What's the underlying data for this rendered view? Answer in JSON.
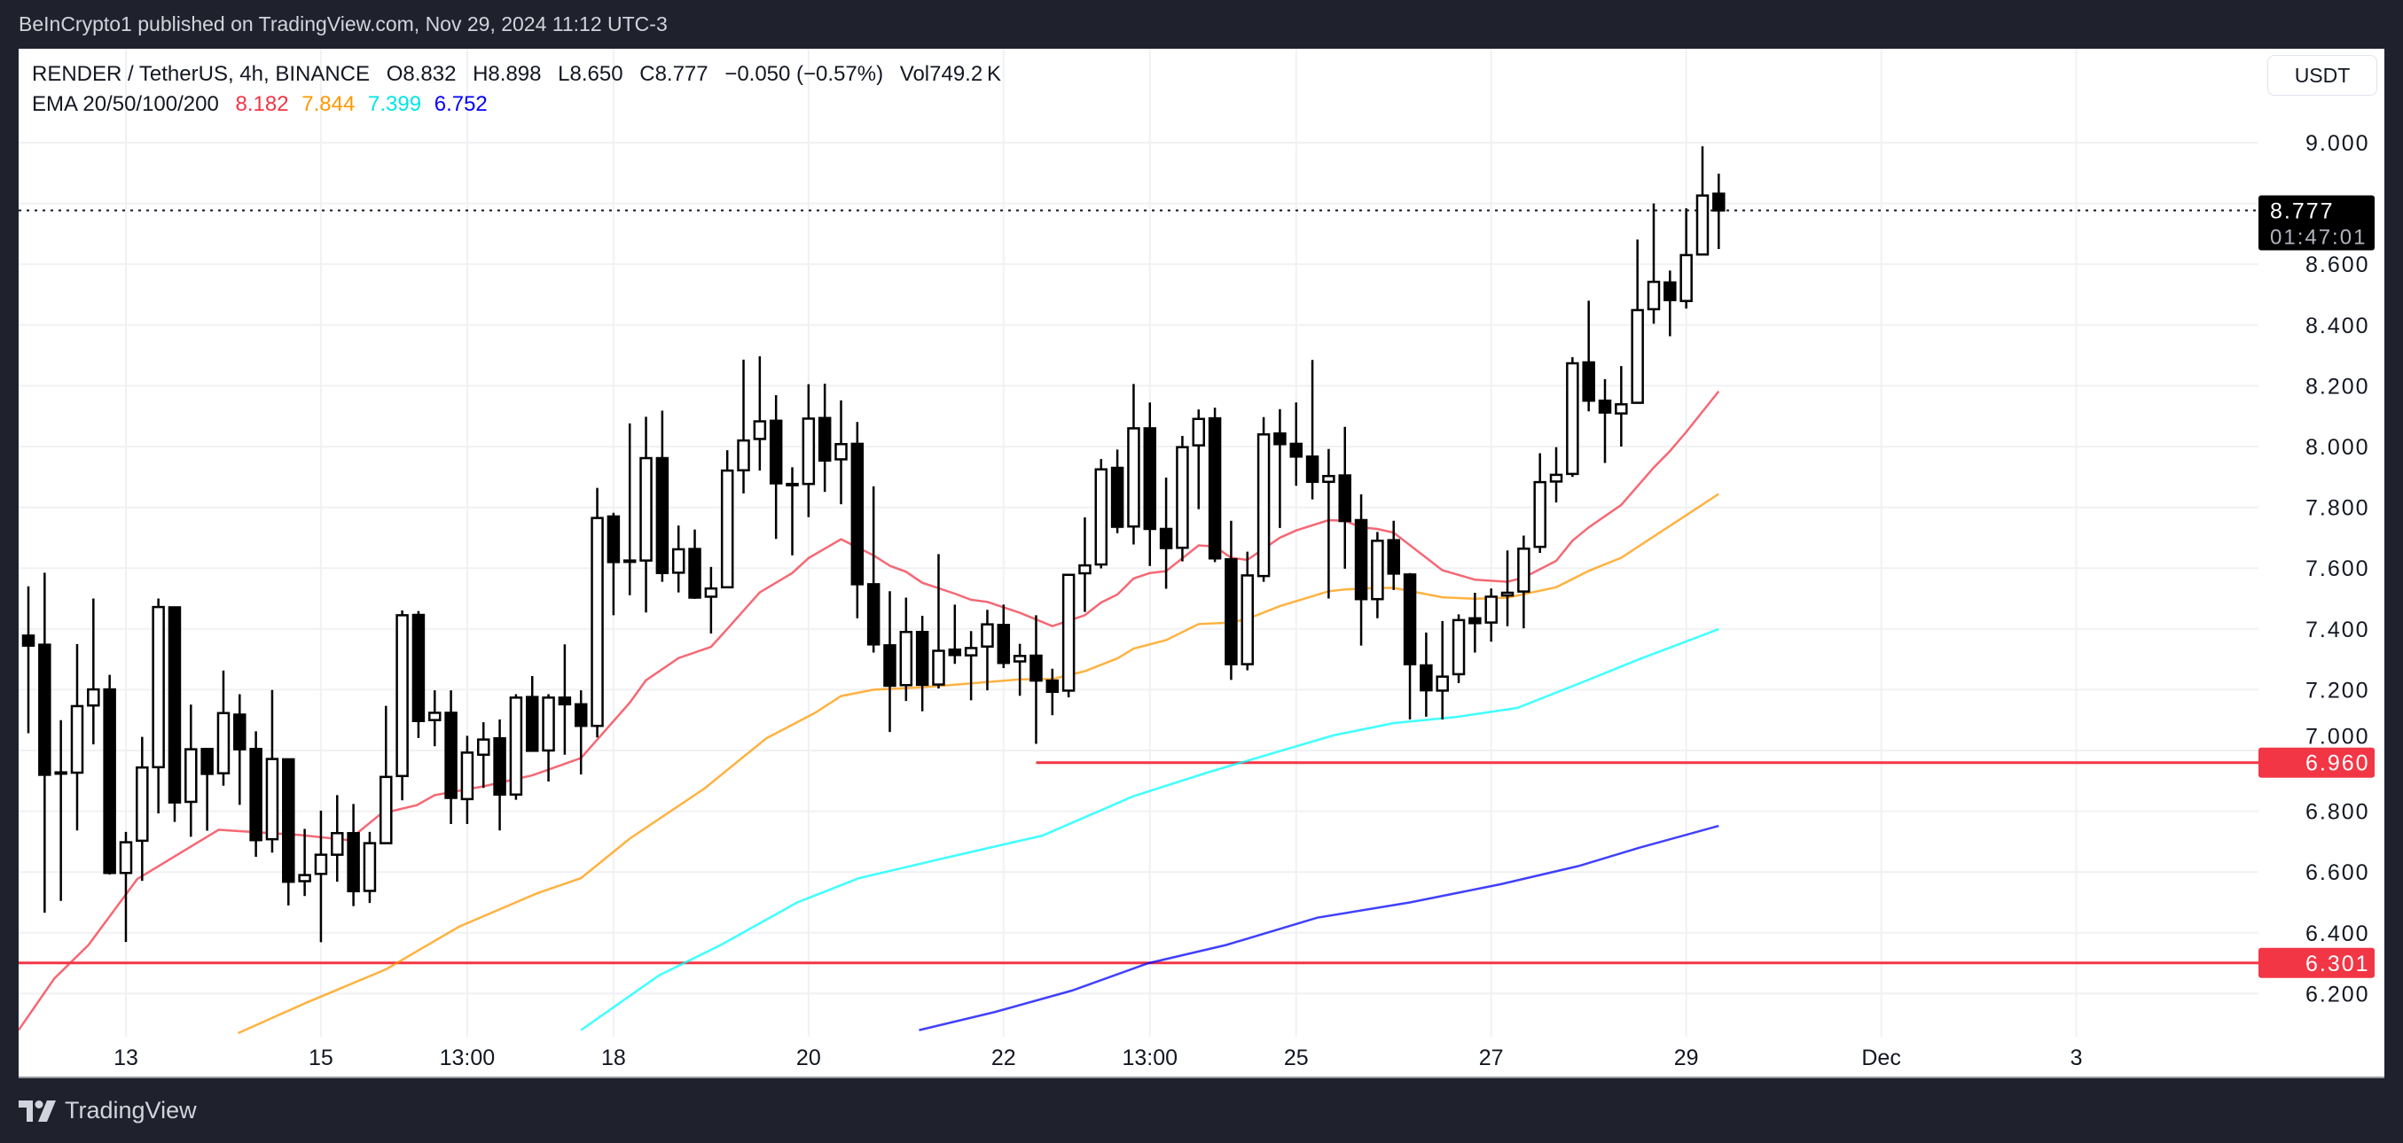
{
  "publisher_line": "BeInCrypto1 published on TradingView.com, Nov 29, 2024 11:12 UTC-3",
  "legend": {
    "symbol": "RENDER / TetherUS, 4h, BINANCE",
    "open": "O8.832",
    "high": "H8.898",
    "low": "L8.650",
    "close": "C8.777",
    "change": "−0.050 (−0.57%)",
    "volume": "Vol749.2 K",
    "ema_label": "EMA 20/50/100/200",
    "ema_values": [
      "8.182",
      "7.844",
      "7.399",
      "6.752"
    ]
  },
  "currency_button": "USDT",
  "footer": {
    "logo_text": "TradingView"
  },
  "colors": {
    "background": "#1f222d",
    "ema20": "#f23645",
    "ema50": "#ff9800",
    "ema100": "#00ffff",
    "ema200": "#0000ff",
    "level_line": "#f23645",
    "up_candle": "#ffffff",
    "down_candle": "#000000"
  },
  "chart_data": {
    "type": "candlestick",
    "symbol": "RENDER / TetherUS",
    "interval": "4h",
    "ylim": [
      6.08,
      9.32
    ],
    "grid": true,
    "y_ticks": [
      "9.000",
      "8.600",
      "8.400",
      "8.200",
      "8.000",
      "7.800",
      "7.600",
      "7.400",
      "7.200",
      "7.000",
      "6.800",
      "6.600",
      "6.400",
      "6.200"
    ],
    "x_ticks": [
      {
        "label": "13",
        "bar": 6
      },
      {
        "label": "15",
        "bar": 18
      },
      {
        "label": "13:00",
        "bar": 27
      },
      {
        "label": "18",
        "bar": 36
      },
      {
        "label": "20",
        "bar": 48
      },
      {
        "label": "22",
        "bar": 60
      },
      {
        "label": "13:00",
        "bar": 69
      },
      {
        "label": "25",
        "bar": 78
      },
      {
        "label": "27",
        "bar": 90
      },
      {
        "label": "29",
        "bar": 102
      },
      {
        "label": "Dec",
        "bar": 114
      },
      {
        "label": "3",
        "bar": 126
      }
    ],
    "ohlc_fields": [
      "open",
      "high",
      "low",
      "close"
    ],
    "candles": [
      [
        7.378,
        7.54,
        7.057,
        7.345
      ],
      [
        7.348,
        7.585,
        6.466,
        6.92
      ],
      [
        6.928,
        7.1,
        6.505,
        6.928
      ],
      [
        6.927,
        7.35,
        6.737,
        7.146
      ],
      [
        7.148,
        7.5,
        7.02,
        7.201
      ],
      [
        7.201,
        7.249,
        6.592,
        6.597
      ],
      [
        6.597,
        6.732,
        6.37,
        6.698
      ],
      [
        6.703,
        7.045,
        6.571,
        6.944
      ],
      [
        6.945,
        7.5,
        6.793,
        7.472
      ],
      [
        7.471,
        7.471,
        6.765,
        6.829
      ],
      [
        6.831,
        7.151,
        6.716,
        7.004
      ],
      [
        7.005,
        7.005,
        6.736,
        6.923
      ],
      [
        6.925,
        7.263,
        6.884,
        7.123
      ],
      [
        7.118,
        7.185,
        6.821,
        7.004
      ],
      [
        7.005,
        7.063,
        6.65,
        6.705
      ],
      [
        6.708,
        7.199,
        6.664,
        6.972
      ],
      [
        6.971,
        6.971,
        6.49,
        6.568
      ],
      [
        6.57,
        6.742,
        6.521,
        6.59
      ],
      [
        6.594,
        6.802,
        6.369,
        6.657
      ],
      [
        6.657,
        6.853,
        6.568,
        6.728
      ],
      [
        6.728,
        6.824,
        6.488,
        6.537
      ],
      [
        6.538,
        6.732,
        6.498,
        6.695
      ],
      [
        6.695,
        7.147,
        6.695,
        6.913
      ],
      [
        6.916,
        7.461,
        6.836,
        7.445
      ],
      [
        7.446,
        7.459,
        7.041,
        7.097
      ],
      [
        7.1,
        7.198,
        7.014,
        7.124
      ],
      [
        7.124,
        7.198,
        6.758,
        6.844
      ],
      [
        6.84,
        7.048,
        6.758,
        6.993
      ],
      [
        6.986,
        7.093,
        6.877,
        7.036
      ],
      [
        7.04,
        7.102,
        6.737,
        6.855
      ],
      [
        6.855,
        7.185,
        6.838,
        7.174
      ],
      [
        7.176,
        7.245,
        6.999,
        6.999
      ],
      [
        7.0,
        7.185,
        6.898,
        7.174
      ],
      [
        7.174,
        7.349,
        6.986,
        7.152
      ],
      [
        7.152,
        7.198,
        6.921,
        7.081
      ],
      [
        7.081,
        7.864,
        7.043,
        7.765
      ],
      [
        7.77,
        7.782,
        7.445,
        7.62
      ],
      [
        7.625,
        8.076,
        7.511,
        7.625
      ],
      [
        7.625,
        8.098,
        7.454,
        7.962
      ],
      [
        7.962,
        8.118,
        7.555,
        7.584
      ],
      [
        7.585,
        7.74,
        7.52,
        7.662
      ],
      [
        7.663,
        7.727,
        7.499,
        7.503
      ],
      [
        7.506,
        7.604,
        7.385,
        7.533
      ],
      [
        7.537,
        7.988,
        7.534,
        7.921
      ],
      [
        7.922,
        8.286,
        7.846,
        8.02
      ],
      [
        8.025,
        8.297,
        7.921,
        8.083
      ],
      [
        8.085,
        8.169,
        7.696,
        7.879
      ],
      [
        7.877,
        7.932,
        7.642,
        7.877
      ],
      [
        7.877,
        8.205,
        7.768,
        8.092
      ],
      [
        8.094,
        8.207,
        7.851,
        7.954
      ],
      [
        7.958,
        8.152,
        7.81,
        8.008
      ],
      [
        8.009,
        8.081,
        7.435,
        7.547
      ],
      [
        7.547,
        7.869,
        7.322,
        7.349
      ],
      [
        7.346,
        7.524,
        7.061,
        7.213
      ],
      [
        7.215,
        7.503,
        7.163,
        7.39
      ],
      [
        7.39,
        7.443,
        7.129,
        7.216
      ],
      [
        7.217,
        7.646,
        7.204,
        7.328
      ],
      [
        7.332,
        7.48,
        7.285,
        7.314
      ],
      [
        7.313,
        7.393,
        7.165,
        7.337
      ],
      [
        7.342,
        7.463,
        7.198,
        7.415
      ],
      [
        7.413,
        7.48,
        7.271,
        7.288
      ],
      [
        7.293,
        7.351,
        7.18,
        7.311
      ],
      [
        7.312,
        7.445,
        7.022,
        7.23
      ],
      [
        7.23,
        7.269,
        7.116,
        7.193
      ],
      [
        7.197,
        7.578,
        7.175,
        7.578
      ],
      [
        7.583,
        7.767,
        7.456,
        7.609
      ],
      [
        7.612,
        7.959,
        7.599,
        7.925
      ],
      [
        7.93,
        7.99,
        7.715,
        7.736
      ],
      [
        7.737,
        8.206,
        7.678,
        8.06
      ],
      [
        8.06,
        8.145,
        7.607,
        7.729
      ],
      [
        7.729,
        7.898,
        7.532,
        7.666
      ],
      [
        7.667,
        8.035,
        7.622,
        7.998
      ],
      [
        8.004,
        8.122,
        7.794,
        8.091
      ],
      [
        8.093,
        8.128,
        7.62,
        7.632
      ],
      [
        7.629,
        7.756,
        7.232,
        7.284
      ],
      [
        7.284,
        7.654,
        7.264,
        7.576
      ],
      [
        7.574,
        8.097,
        7.555,
        8.04
      ],
      [
        8.043,
        8.123,
        7.732,
        8.008
      ],
      [
        8.009,
        8.145,
        7.871,
        7.967
      ],
      [
        7.967,
        8.285,
        7.826,
        7.884
      ],
      [
        7.884,
        7.992,
        7.5,
        7.903
      ],
      [
        7.905,
        8.065,
        7.598,
        7.755
      ],
      [
        7.758,
        7.843,
        7.345,
        7.498
      ],
      [
        7.498,
        7.719,
        7.435,
        7.69
      ],
      [
        7.692,
        7.756,
        7.528,
        7.582
      ],
      [
        7.579,
        7.584,
        7.102,
        7.284
      ],
      [
        7.28,
        7.388,
        7.111,
        7.198
      ],
      [
        7.197,
        7.426,
        7.102,
        7.243
      ],
      [
        7.251,
        7.448,
        7.222,
        7.429
      ],
      [
        7.435,
        7.519,
        7.322,
        7.419
      ],
      [
        7.421,
        7.533,
        7.358,
        7.506
      ],
      [
        7.51,
        7.658,
        7.409,
        7.519
      ],
      [
        7.523,
        7.707,
        7.402,
        7.664
      ],
      [
        7.67,
        7.978,
        7.65,
        7.883
      ],
      [
        7.885,
        7.998,
        7.816,
        7.907
      ],
      [
        7.91,
        8.294,
        7.9,
        8.274
      ],
      [
        8.277,
        8.48,
        8.116,
        8.151
      ],
      [
        8.151,
        8.222,
        7.946,
        8.112
      ],
      [
        8.109,
        8.265,
        8.0,
        8.139
      ],
      [
        8.144,
        8.681,
        8.144,
        8.449
      ],
      [
        8.452,
        8.8,
        8.404,
        8.542
      ],
      [
        8.54,
        8.579,
        8.363,
        8.482
      ],
      [
        8.479,
        8.784,
        8.454,
        8.63
      ],
      [
        8.632,
        8.988,
        8.632,
        8.826
      ],
      [
        8.832,
        8.898,
        8.65,
        8.777
      ]
    ],
    "series": [
      {
        "name": "EMA 20",
        "color": "#f23645",
        "points": [
          [
            -0.6,
            6.08
          ],
          [
            1.6,
            6.25
          ],
          [
            3.7,
            6.36
          ],
          [
            6.7,
            6.577
          ],
          [
            11.7,
            6.739
          ],
          [
            16.7,
            6.722
          ],
          [
            19.7,
            6.705
          ],
          [
            21.7,
            6.792
          ],
          [
            23.9,
            6.82
          ],
          [
            25,
            6.853
          ],
          [
            28,
            6.882
          ],
          [
            31,
            6.918
          ],
          [
            34,
            6.975
          ],
          [
            37,
            7.157
          ],
          [
            38,
            7.231
          ],
          [
            40,
            7.304
          ],
          [
            42,
            7.341
          ],
          [
            43,
            7.4
          ],
          [
            45,
            7.52
          ],
          [
            47,
            7.584
          ],
          [
            48,
            7.633
          ],
          [
            49,
            7.664
          ],
          [
            50,
            7.695
          ],
          [
            52,
            7.642
          ],
          [
            53,
            7.608
          ],
          [
            54,
            7.588
          ],
          [
            55,
            7.552
          ],
          [
            57,
            7.516
          ],
          [
            58,
            7.496
          ],
          [
            59,
            7.489
          ],
          [
            61,
            7.453
          ],
          [
            63,
            7.409
          ],
          [
            65,
            7.445
          ],
          [
            66,
            7.487
          ],
          [
            67,
            7.513
          ],
          [
            68,
            7.566
          ],
          [
            69,
            7.584
          ],
          [
            70,
            7.59
          ],
          [
            72,
            7.675
          ],
          [
            73,
            7.671
          ],
          [
            74,
            7.634
          ],
          [
            75,
            7.627
          ],
          [
            77,
            7.7
          ],
          [
            78,
            7.724
          ],
          [
            80,
            7.758
          ],
          [
            81,
            7.756
          ],
          [
            82,
            7.734
          ],
          [
            83,
            7.729
          ],
          [
            84,
            7.717
          ],
          [
            87,
            7.593
          ],
          [
            89,
            7.562
          ],
          [
            91,
            7.555
          ],
          [
            92,
            7.569
          ],
          [
            94,
            7.624
          ],
          [
            95,
            7.69
          ],
          [
            96,
            7.734
          ],
          [
            98,
            7.808
          ],
          [
            100,
            7.931
          ],
          [
            101,
            7.985
          ],
          [
            102,
            8.048
          ],
          [
            104,
            8.182
          ]
        ]
      },
      {
        "name": "EMA 50",
        "color": "#ff9800",
        "points": [
          [
            12.9,
            6.07
          ],
          [
            17.1,
            6.17
          ],
          [
            22,
            6.28
          ],
          [
            26.5,
            6.42
          ],
          [
            31.3,
            6.53
          ],
          [
            34,
            6.58
          ],
          [
            37,
            6.71
          ],
          [
            41.6,
            6.875
          ],
          [
            45.4,
            7.04
          ],
          [
            48.4,
            7.124
          ],
          [
            50,
            7.179
          ],
          [
            52,
            7.2
          ],
          [
            55,
            7.208
          ],
          [
            58,
            7.221
          ],
          [
            61,
            7.234
          ],
          [
            63,
            7.235
          ],
          [
            65,
            7.261
          ],
          [
            67,
            7.303
          ],
          [
            68,
            7.335
          ],
          [
            70,
            7.363
          ],
          [
            72,
            7.416
          ],
          [
            74,
            7.421
          ],
          [
            75,
            7.433
          ],
          [
            77,
            7.475
          ],
          [
            80,
            7.524
          ],
          [
            81,
            7.53
          ],
          [
            83,
            7.535
          ],
          [
            84,
            7.535
          ],
          [
            87,
            7.504
          ],
          [
            89,
            7.499
          ],
          [
            91,
            7.503
          ],
          [
            94,
            7.537
          ],
          [
            96,
            7.591
          ],
          [
            98,
            7.634
          ],
          [
            104,
            7.844
          ]
        ]
      },
      {
        "name": "EMA 100",
        "color": "#00ffff",
        "points": [
          [
            34,
            6.08
          ],
          [
            38.8,
            6.26
          ],
          [
            42.6,
            6.36
          ],
          [
            47.3,
            6.5
          ],
          [
            51.1,
            6.58
          ],
          [
            56.7,
            6.65
          ],
          [
            62.4,
            6.72
          ],
          [
            68,
            6.85
          ],
          [
            72.7,
            6.93
          ],
          [
            76.5,
            6.99
          ],
          [
            80.3,
            7.05
          ],
          [
            84,
            7.09
          ],
          [
            87.8,
            7.11
          ],
          [
            91.6,
            7.14
          ],
          [
            95.4,
            7.22
          ],
          [
            99.1,
            7.3
          ],
          [
            104,
            7.399
          ]
        ]
      },
      {
        "name": "EMA 200",
        "color": "#0000ff",
        "points": [
          [
            54.8,
            6.08
          ],
          [
            59.5,
            6.14
          ],
          [
            64.2,
            6.21
          ],
          [
            68.9,
            6.3
          ],
          [
            73.7,
            6.36
          ],
          [
            79.3,
            6.45
          ],
          [
            85,
            6.5
          ],
          [
            90.6,
            6.56
          ],
          [
            95.4,
            6.62
          ],
          [
            99.1,
            6.68
          ],
          [
            104,
            6.752
          ]
        ]
      }
    ],
    "horizontal_levels": [
      {
        "price": 6.96,
        "label": "6.960",
        "from_bar": 62
      },
      {
        "price": 6.301,
        "label": "6.301",
        "from_bar": null
      }
    ],
    "last_price": {
      "label": "8.777",
      "countdown": "01:47:01",
      "value": 8.777
    }
  }
}
